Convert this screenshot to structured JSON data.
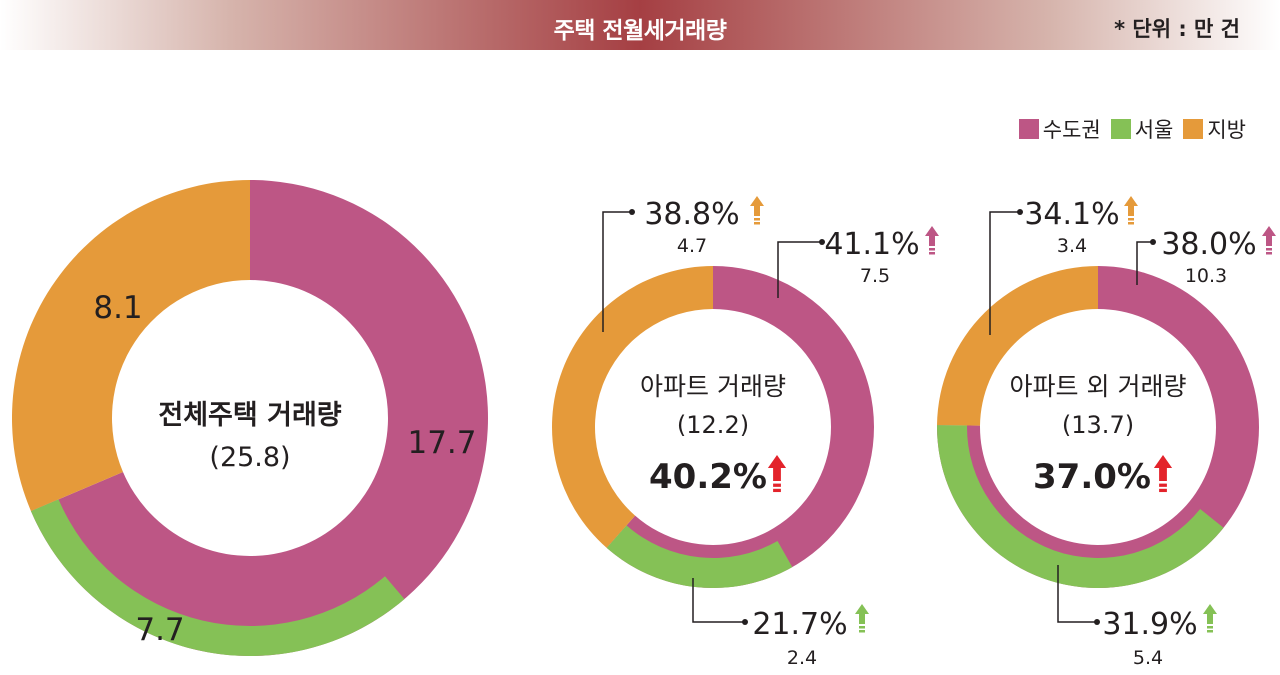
{
  "header": {
    "title": "주택 전월세거래량",
    "unit": "* 단위 : 만 건"
  },
  "legend": [
    {
      "label": "수도권",
      "color": "#bd5685"
    },
    {
      "label": "서울",
      "color": "#85c156"
    },
    {
      "label": "지방",
      "color": "#e59a3a"
    }
  ],
  "colors": {
    "metro": "#bd5685",
    "seoul": "#85c156",
    "local": "#e59a3a",
    "up_red": "#e3232b"
  },
  "chart_data": [
    {
      "type": "pie",
      "title": "전체주택 거래량",
      "total": "(25.8)",
      "series": [
        {
          "name": "수도권",
          "value": 17.7,
          "label": "17.7"
        },
        {
          "name": "지방",
          "value": 8.1,
          "label": "8.1"
        }
      ],
      "inner_series": [
        {
          "name": "서울",
          "value": 7.7,
          "label": "7.7"
        }
      ]
    },
    {
      "type": "pie",
      "title": "아파트 거래량",
      "total": "(12.2)",
      "change": "40.2%",
      "series": [
        {
          "name": "수도권",
          "value": 7.5,
          "label": "7.5",
          "change": "41.1%"
        },
        {
          "name": "지방",
          "value": 4.7,
          "label": "4.7",
          "change": "38.8%"
        }
      ],
      "inner_series": [
        {
          "name": "서울",
          "value": 2.4,
          "label": "2.4",
          "change": "21.7%"
        }
      ]
    },
    {
      "type": "pie",
      "title": "아파트 외 거래량",
      "total": "(13.7)",
      "change": "37.0%",
      "series": [
        {
          "name": "수도권",
          "value": 10.3,
          "label": "10.3",
          "change": "38.0%"
        },
        {
          "name": "지방",
          "value": 3.4,
          "label": "3.4",
          "change": "34.1%"
        }
      ],
      "inner_series": [
        {
          "name": "서울",
          "value": 5.4,
          "label": "5.4",
          "change": "31.9%"
        }
      ]
    }
  ]
}
